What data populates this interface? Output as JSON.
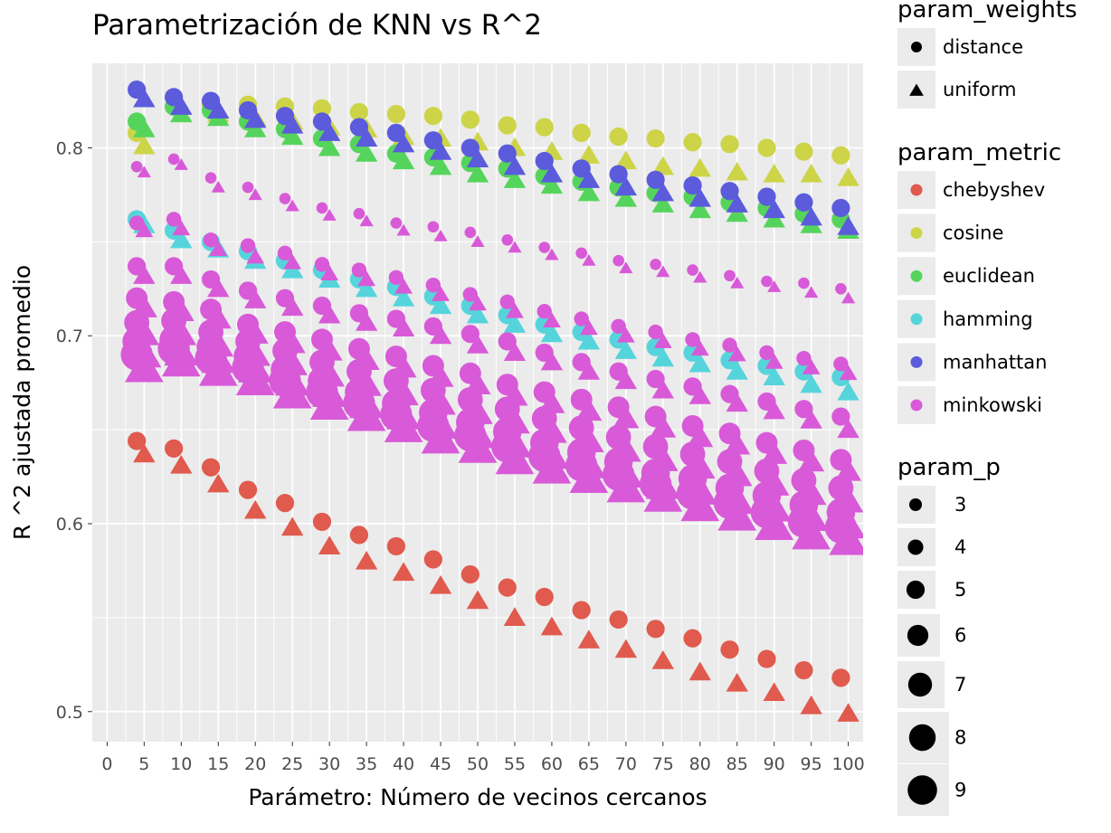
{
  "chart_data": {
    "type": "scatter",
    "title": "Parametrización de KNN vs R^2",
    "xlabel": "Parámetro: Número de vecinos cercanos",
    "ylabel": "R ^2 ajustada promedio",
    "xlim": [
      -2,
      102
    ],
    "ylim": [
      0.484,
      0.845
    ],
    "x_ticks": [
      0,
      5,
      10,
      15,
      20,
      25,
      30,
      35,
      40,
      45,
      50,
      55,
      60,
      65,
      70,
      75,
      80,
      85,
      90,
      95,
      100
    ],
    "y_ticks": [
      0.5,
      0.6,
      0.7,
      0.8
    ],
    "y_tick_labels": [
      "0.5",
      "0.6",
      "0.7",
      "0.8"
    ],
    "grid": true,
    "background": "#ebebeb",
    "x": [
      4,
      9,
      14,
      19,
      24,
      29,
      34,
      39,
      44,
      49,
      54,
      59,
      64,
      69,
      74,
      79,
      84,
      89,
      94,
      99
    ],
    "series": [
      {
        "metric": "chebyshev",
        "weights": "distance",
        "p": 5,
        "color": "#e05a4e",
        "values": [
          0.644,
          0.64,
          0.63,
          0.618,
          0.611,
          0.601,
          0.594,
          0.588,
          0.581,
          0.573,
          0.566,
          0.561,
          0.554,
          0.549,
          0.544,
          0.539,
          0.533,
          0.528,
          0.522,
          0.518
        ]
      },
      {
        "metric": "chebyshev",
        "weights": "uniform",
        "p": 5,
        "color": "#e05a4e",
        "values": [
          0.637,
          0.631,
          0.621,
          0.607,
          0.598,
          0.588,
          0.58,
          0.574,
          0.567,
          0.559,
          0.55,
          0.545,
          0.538,
          0.533,
          0.527,
          0.521,
          0.515,
          0.51,
          0.503,
          0.499
        ]
      },
      {
        "metric": "cosine",
        "weights": "distance",
        "p": 5,
        "color": "#cdd448",
        "values": [
          0.808,
          0.822,
          0.823,
          0.823,
          0.822,
          0.821,
          0.819,
          0.818,
          0.817,
          0.815,
          0.812,
          0.811,
          0.808,
          0.806,
          0.805,
          0.803,
          0.802,
          0.8,
          0.798,
          0.796
        ]
      },
      {
        "metric": "cosine",
        "weights": "uniform",
        "p": 5,
        "color": "#cdd448",
        "values": [
          0.801,
          0.818,
          0.818,
          0.816,
          0.814,
          0.811,
          0.81,
          0.806,
          0.805,
          0.803,
          0.8,
          0.798,
          0.796,
          0.793,
          0.79,
          0.789,
          0.787,
          0.786,
          0.786,
          0.784
        ]
      },
      {
        "metric": "euclidean",
        "weights": "distance",
        "p": 5,
        "color": "#55d45c",
        "values": [
          0.814,
          0.822,
          0.82,
          0.814,
          0.81,
          0.805,
          0.802,
          0.797,
          0.795,
          0.792,
          0.789,
          0.785,
          0.782,
          0.779,
          0.776,
          0.774,
          0.771,
          0.768,
          0.765,
          0.762
        ]
      },
      {
        "metric": "euclidean",
        "weights": "uniform",
        "p": 5,
        "color": "#55d45c",
        "values": [
          0.81,
          0.818,
          0.816,
          0.81,
          0.806,
          0.8,
          0.797,
          0.793,
          0.79,
          0.786,
          0.783,
          0.78,
          0.776,
          0.773,
          0.77,
          0.767,
          0.765,
          0.762,
          0.759,
          0.756
        ]
      },
      {
        "metric": "hamming",
        "weights": "distance",
        "p": 5,
        "color": "#56d4dc",
        "values": [
          0.762,
          0.756,
          0.75,
          0.745,
          0.74,
          0.735,
          0.73,
          0.726,
          0.721,
          0.716,
          0.711,
          0.706,
          0.702,
          0.698,
          0.694,
          0.691,
          0.687,
          0.684,
          0.681,
          0.678
        ]
      },
      {
        "metric": "hamming",
        "weights": "uniform",
        "p": 5,
        "color": "#56d4dc",
        "values": [
          0.759,
          0.751,
          0.746,
          0.74,
          0.735,
          0.73,
          0.725,
          0.72,
          0.716,
          0.711,
          0.706,
          0.701,
          0.697,
          0.692,
          0.688,
          0.685,
          0.681,
          0.678,
          0.674,
          0.67
        ]
      },
      {
        "metric": "manhattan",
        "weights": "distance",
        "p": 5,
        "color": "#5b5bdc",
        "values": [
          0.831,
          0.827,
          0.825,
          0.82,
          0.817,
          0.814,
          0.811,
          0.808,
          0.804,
          0.8,
          0.797,
          0.793,
          0.789,
          0.786,
          0.783,
          0.78,
          0.777,
          0.774,
          0.771,
          0.768
        ]
      },
      {
        "metric": "manhattan",
        "weights": "uniform",
        "p": 5,
        "color": "#5b5bdc",
        "values": [
          0.826,
          0.822,
          0.82,
          0.815,
          0.812,
          0.808,
          0.805,
          0.802,
          0.798,
          0.794,
          0.79,
          0.786,
          0.783,
          0.779,
          0.776,
          0.773,
          0.77,
          0.767,
          0.763,
          0.758
        ]
      },
      {
        "metric": "minkowski",
        "weights": "distance",
        "p": 3,
        "color": "#d85ad8",
        "values": [
          0.79,
          0.794,
          0.784,
          0.779,
          0.773,
          0.768,
          0.765,
          0.76,
          0.758,
          0.755,
          0.751,
          0.747,
          0.744,
          0.74,
          0.738,
          0.735,
          0.732,
          0.729,
          0.728,
          0.725
        ]
      },
      {
        "metric": "minkowski",
        "weights": "uniform",
        "p": 3,
        "color": "#d85ad8",
        "values": [
          0.787,
          0.791,
          0.779,
          0.775,
          0.769,
          0.764,
          0.761,
          0.756,
          0.753,
          0.75,
          0.747,
          0.743,
          0.74,
          0.736,
          0.734,
          0.731,
          0.728,
          0.726,
          0.723,
          0.72
        ]
      },
      {
        "metric": "minkowski",
        "weights": "distance",
        "p": 4,
        "color": "#d85ad8",
        "values": [
          0.76,
          0.762,
          0.751,
          0.748,
          0.744,
          0.738,
          0.735,
          0.731,
          0.727,
          0.722,
          0.718,
          0.713,
          0.709,
          0.705,
          0.702,
          0.698,
          0.695,
          0.691,
          0.688,
          0.685
        ]
      },
      {
        "metric": "minkowski",
        "weights": "uniform",
        "p": 4,
        "color": "#d85ad8",
        "values": [
          0.756,
          0.757,
          0.746,
          0.742,
          0.739,
          0.733,
          0.73,
          0.726,
          0.722,
          0.717,
          0.713,
          0.708,
          0.704,
          0.7,
          0.697,
          0.693,
          0.69,
          0.686,
          0.683,
          0.68
        ]
      },
      {
        "metric": "minkowski",
        "weights": "distance",
        "p": 5,
        "color": "#d85ad8",
        "values": [
          0.737,
          0.737,
          0.73,
          0.724,
          0.72,
          0.716,
          0.712,
          0.709,
          0.705,
          0.701,
          0.697,
          0.691,
          0.686,
          0.681,
          0.677,
          0.673,
          0.669,
          0.665,
          0.661,
          0.657
        ]
      },
      {
        "metric": "minkowski",
        "weights": "uniform",
        "p": 5,
        "color": "#d85ad8",
        "values": [
          0.732,
          0.732,
          0.725,
          0.719,
          0.715,
          0.711,
          0.707,
          0.704,
          0.7,
          0.695,
          0.691,
          0.686,
          0.681,
          0.676,
          0.671,
          0.668,
          0.664,
          0.66,
          0.655,
          0.65
        ]
      },
      {
        "metric": "minkowski",
        "weights": "distance",
        "p": 6,
        "color": "#d85ad8",
        "values": [
          0.72,
          0.718,
          0.714,
          0.706,
          0.702,
          0.698,
          0.693,
          0.689,
          0.684,
          0.68,
          0.674,
          0.67,
          0.666,
          0.662,
          0.657,
          0.652,
          0.648,
          0.643,
          0.639,
          0.634
        ]
      },
      {
        "metric": "minkowski",
        "weights": "uniform",
        "p": 6,
        "color": "#d85ad8",
        "values": [
          0.715,
          0.713,
          0.709,
          0.701,
          0.696,
          0.692,
          0.687,
          0.683,
          0.678,
          0.674,
          0.668,
          0.664,
          0.66,
          0.656,
          0.651,
          0.646,
          0.642,
          0.637,
          0.633,
          0.628
        ]
      },
      {
        "metric": "minkowski",
        "weights": "distance",
        "p": 7,
        "color": "#d85ad8",
        "values": [
          0.707,
          0.708,
          0.702,
          0.697,
          0.692,
          0.686,
          0.681,
          0.676,
          0.671,
          0.666,
          0.661,
          0.656,
          0.651,
          0.646,
          0.641,
          0.637,
          0.633,
          0.628,
          0.623,
          0.619
        ]
      },
      {
        "metric": "minkowski",
        "weights": "uniform",
        "p": 7,
        "color": "#d85ad8",
        "values": [
          0.701,
          0.701,
          0.695,
          0.69,
          0.685,
          0.679,
          0.674,
          0.669,
          0.664,
          0.659,
          0.654,
          0.649,
          0.644,
          0.639,
          0.634,
          0.63,
          0.626,
          0.621,
          0.616,
          0.612
        ]
      },
      {
        "metric": "minkowski",
        "weights": "distance",
        "p": 8,
        "color": "#d85ad8",
        "values": [
          0.697,
          0.698,
          0.694,
          0.689,
          0.682,
          0.676,
          0.67,
          0.664,
          0.659,
          0.654,
          0.649,
          0.643,
          0.638,
          0.633,
          0.627,
          0.624,
          0.619,
          0.615,
          0.61,
          0.606
        ]
      },
      {
        "metric": "minkowski",
        "weights": "uniform",
        "p": 8,
        "color": "#d85ad8",
        "values": [
          0.69,
          0.691,
          0.687,
          0.682,
          0.675,
          0.669,
          0.663,
          0.657,
          0.652,
          0.647,
          0.642,
          0.636,
          0.631,
          0.626,
          0.62,
          0.617,
          0.612,
          0.608,
          0.603,
          0.599
        ]
      },
      {
        "metric": "minkowski",
        "weights": "distance",
        "p": 9,
        "color": "#d85ad8",
        "values": [
          0.69,
          0.693,
          0.688,
          0.683,
          0.676,
          0.67,
          0.664,
          0.658,
          0.652,
          0.647,
          0.641,
          0.636,
          0.631,
          0.626,
          0.621,
          0.616,
          0.611,
          0.606,
          0.601,
          0.598
        ]
      },
      {
        "metric": "minkowski",
        "weights": "uniform",
        "p": 9,
        "color": "#d85ad8",
        "values": [
          0.683,
          0.686,
          0.681,
          0.676,
          0.669,
          0.663,
          0.657,
          0.651,
          0.645,
          0.64,
          0.634,
          0.629,
          0.624,
          0.619,
          0.614,
          0.609,
          0.604,
          0.599,
          0.594,
          0.591
        ]
      }
    ],
    "legends": {
      "weights": {
        "title": "param_weights",
        "items": [
          {
            "label": "distance",
            "shape": "circle"
          },
          {
            "label": "uniform",
            "shape": "triangle"
          }
        ]
      },
      "metric": {
        "title": "param_metric",
        "items": [
          {
            "label": "chebyshev",
            "color": "#e05a4e"
          },
          {
            "label": "cosine",
            "color": "#cdd448"
          },
          {
            "label": "euclidean",
            "color": "#55d45c"
          },
          {
            "label": "hamming",
            "color": "#56d4dc"
          },
          {
            "label": "manhattan",
            "color": "#5b5bdc"
          },
          {
            "label": "minkowski",
            "color": "#d85ad8"
          }
        ]
      },
      "p": {
        "title": "param_p",
        "items": [
          {
            "label": "3",
            "value": 3
          },
          {
            "label": "4",
            "value": 4
          },
          {
            "label": "5",
            "value": 5
          },
          {
            "label": "6",
            "value": 6
          },
          {
            "label": "7",
            "value": 7
          },
          {
            "label": "8",
            "value": 8
          },
          {
            "label": "9",
            "value": 9
          }
        ]
      }
    }
  }
}
